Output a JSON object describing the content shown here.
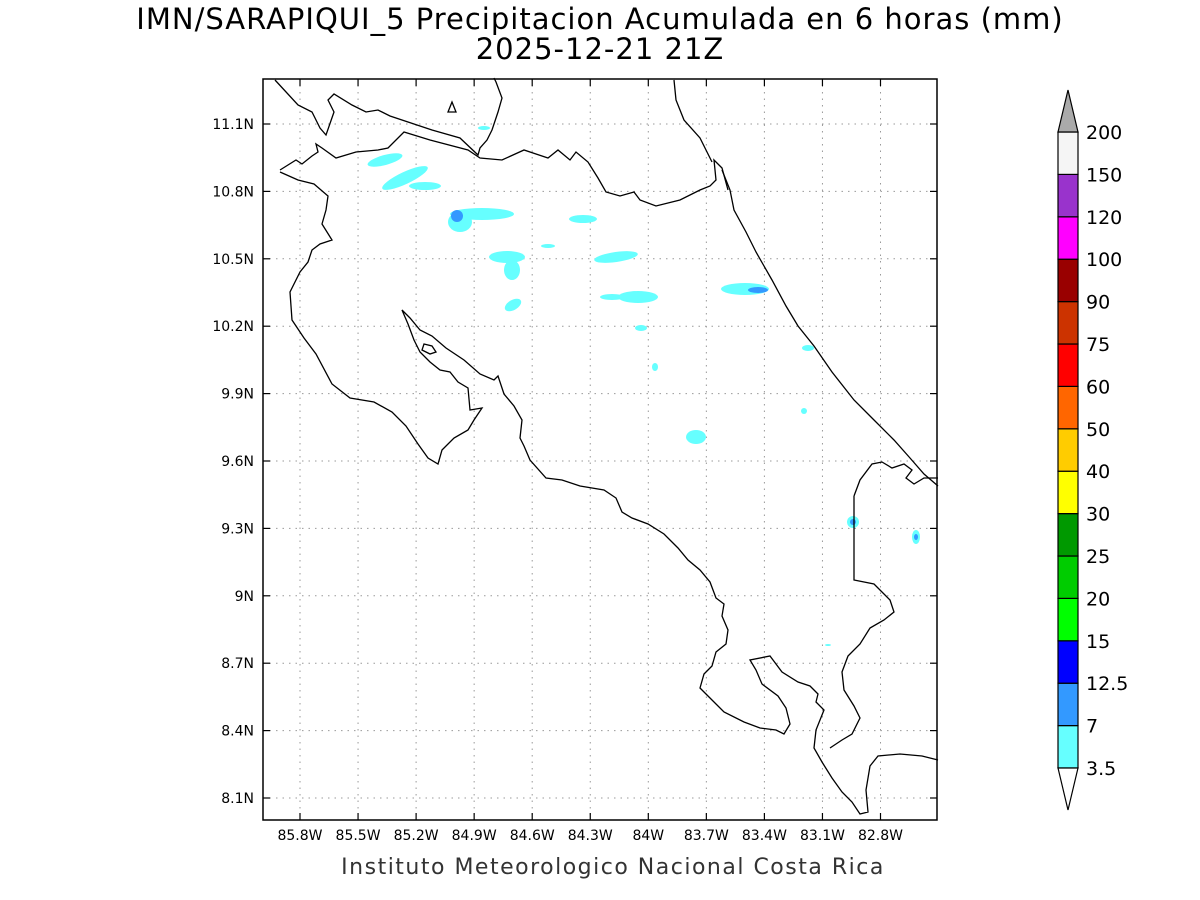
{
  "title": "IMN/SARAPIQUI_5 Precipitacion Acumulada en 6 horas (mm)",
  "subtitle": "2025-12-21 21Z",
  "footer": "Instituto Meteorologico Nacional Costa Rica",
  "map": {
    "lon_range": [
      -86.0,
      -82.5
    ],
    "lat_range": [
      8.0,
      11.3
    ],
    "lon_ticks": [
      {
        "v": -85.8,
        "label": "85.8W"
      },
      {
        "v": -85.5,
        "label": "85.5W"
      },
      {
        "v": -85.2,
        "label": "85.2W"
      },
      {
        "v": -84.9,
        "label": "84.9W"
      },
      {
        "v": -84.6,
        "label": "84.6W"
      },
      {
        "v": -84.3,
        "label": "84.3W"
      },
      {
        "v": -84.0,
        "label": "84W"
      },
      {
        "v": -83.7,
        "label": "83.7W"
      },
      {
        "v": -83.4,
        "label": "83.4W"
      },
      {
        "v": -83.1,
        "label": "83.1W"
      },
      {
        "v": -82.8,
        "label": "82.8W"
      }
    ],
    "lat_ticks": [
      {
        "v": 8.1,
        "label": "8.1N"
      },
      {
        "v": 8.4,
        "label": "8.4N"
      },
      {
        "v": 8.7,
        "label": "8.7N"
      },
      {
        "v": 9.0,
        "label": "9N"
      },
      {
        "v": 9.3,
        "label": "9.3N"
      },
      {
        "v": 9.6,
        "label": "9.6N"
      },
      {
        "v": 9.9,
        "label": "9.9N"
      },
      {
        "v": 10.2,
        "label": "10.2N"
      },
      {
        "v": 10.5,
        "label": "10.5N"
      },
      {
        "v": 10.8,
        "label": "10.8N"
      },
      {
        "v": 11.1,
        "label": "11.1N"
      }
    ],
    "grid": true
  },
  "colorbar": {
    "levels": [
      {
        "label": "3.5",
        "color": "#66ffff"
      },
      {
        "label": "7",
        "color": "#3399ff"
      },
      {
        "label": "12.5",
        "color": "#0000ff"
      },
      {
        "label": "15",
        "color": "#00ff00"
      },
      {
        "label": "20",
        "color": "#00cc00"
      },
      {
        "label": "25",
        "color": "#009900"
      },
      {
        "label": "30",
        "color": "#ffff00"
      },
      {
        "label": "40",
        "color": "#ffcc00"
      },
      {
        "label": "50",
        "color": "#ff6600"
      },
      {
        "label": "60",
        "color": "#ff0000"
      },
      {
        "label": "75",
        "color": "#cc3300"
      },
      {
        "label": "90",
        "color": "#990000"
      },
      {
        "label": "100",
        "color": "#ff00ff"
      },
      {
        "label": "120",
        "color": "#9933cc"
      },
      {
        "label": "150",
        "color": "#f5f5f5"
      },
      {
        "label": "200",
        "color": "#aaaaaa"
      }
    ]
  }
}
